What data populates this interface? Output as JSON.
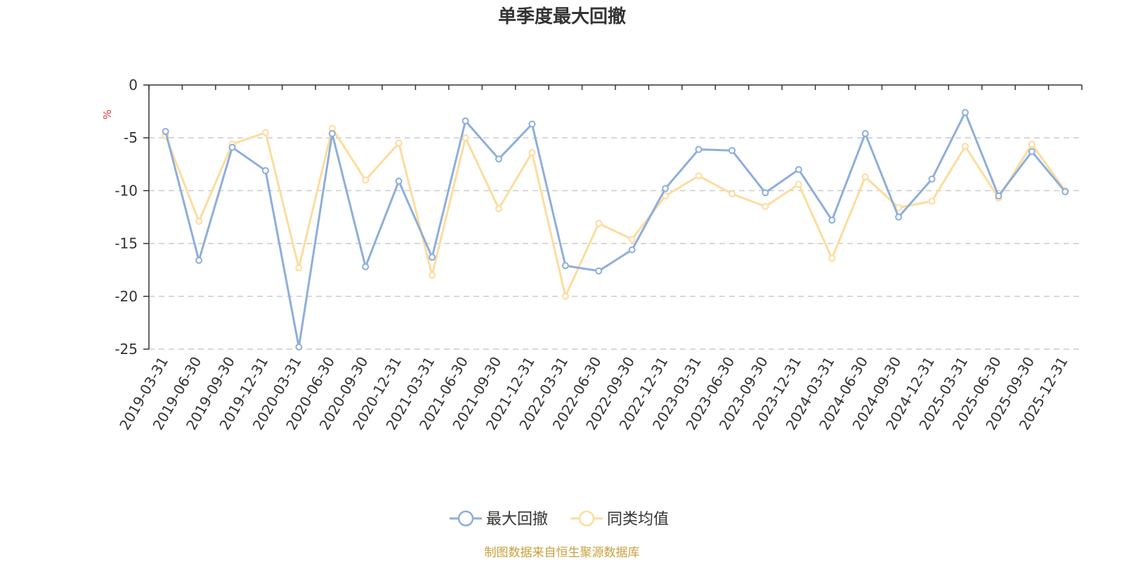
{
  "chart_data": {
    "type": "line",
    "title": "单季度最大回撤",
    "ylabel": "%",
    "ylim": [
      -25,
      0
    ],
    "yticks": [
      0,
      -5,
      -10,
      -15,
      -20,
      -25
    ],
    "grid": true,
    "legend_position": "bottom-center",
    "categories": [
      "2019-03-31",
      "2019-06-30",
      "2019-09-30",
      "2019-12-31",
      "2020-03-31",
      "2020-06-30",
      "2020-09-30",
      "2020-12-31",
      "2021-03-31",
      "2021-06-30",
      "2021-09-30",
      "2021-12-31",
      "2022-03-31",
      "2022-06-30",
      "2022-09-30",
      "2022-12-31",
      "2023-03-31",
      "2023-06-30",
      "2023-09-30",
      "2023-12-31",
      "2024-03-31",
      "2024-06-30",
      "2024-09-30",
      "2024-12-31",
      "2025-03-31",
      "2025-06-30",
      "2025-09-30",
      "2025-12-31"
    ],
    "series": [
      {
        "name": "最大回撤",
        "color": "#8eaedb",
        "values": [
          -4.4,
          -16.6,
          -5.9,
          -8.1,
          -24.8,
          -4.6,
          -17.2,
          -9.1,
          -16.3,
          -3.4,
          -7.0,
          -3.7,
          -17.1,
          -17.6,
          -15.6,
          -9.8,
          -6.1,
          -6.2,
          -10.2,
          -8.0,
          -12.8,
          -4.6,
          -12.5,
          -8.9,
          -2.6,
          -10.5,
          -6.3,
          -10.1
        ]
      },
      {
        "name": "同类均值",
        "color": "#fddc9d",
        "values": [
          -4.8,
          -12.9,
          -5.6,
          -4.5,
          -17.3,
          -4.1,
          -9.0,
          -5.5,
          -18.0,
          -5.0,
          -11.7,
          -6.4,
          -20.0,
          -13.1,
          -14.6,
          -10.5,
          -8.6,
          -10.3,
          -11.5,
          -9.4,
          -16.4,
          -8.7,
          -11.6,
          -11.0,
          -5.8,
          -10.7,
          -5.6,
          -10.0
        ]
      }
    ]
  },
  "source": "制图数据来自恒生聚源数据库"
}
